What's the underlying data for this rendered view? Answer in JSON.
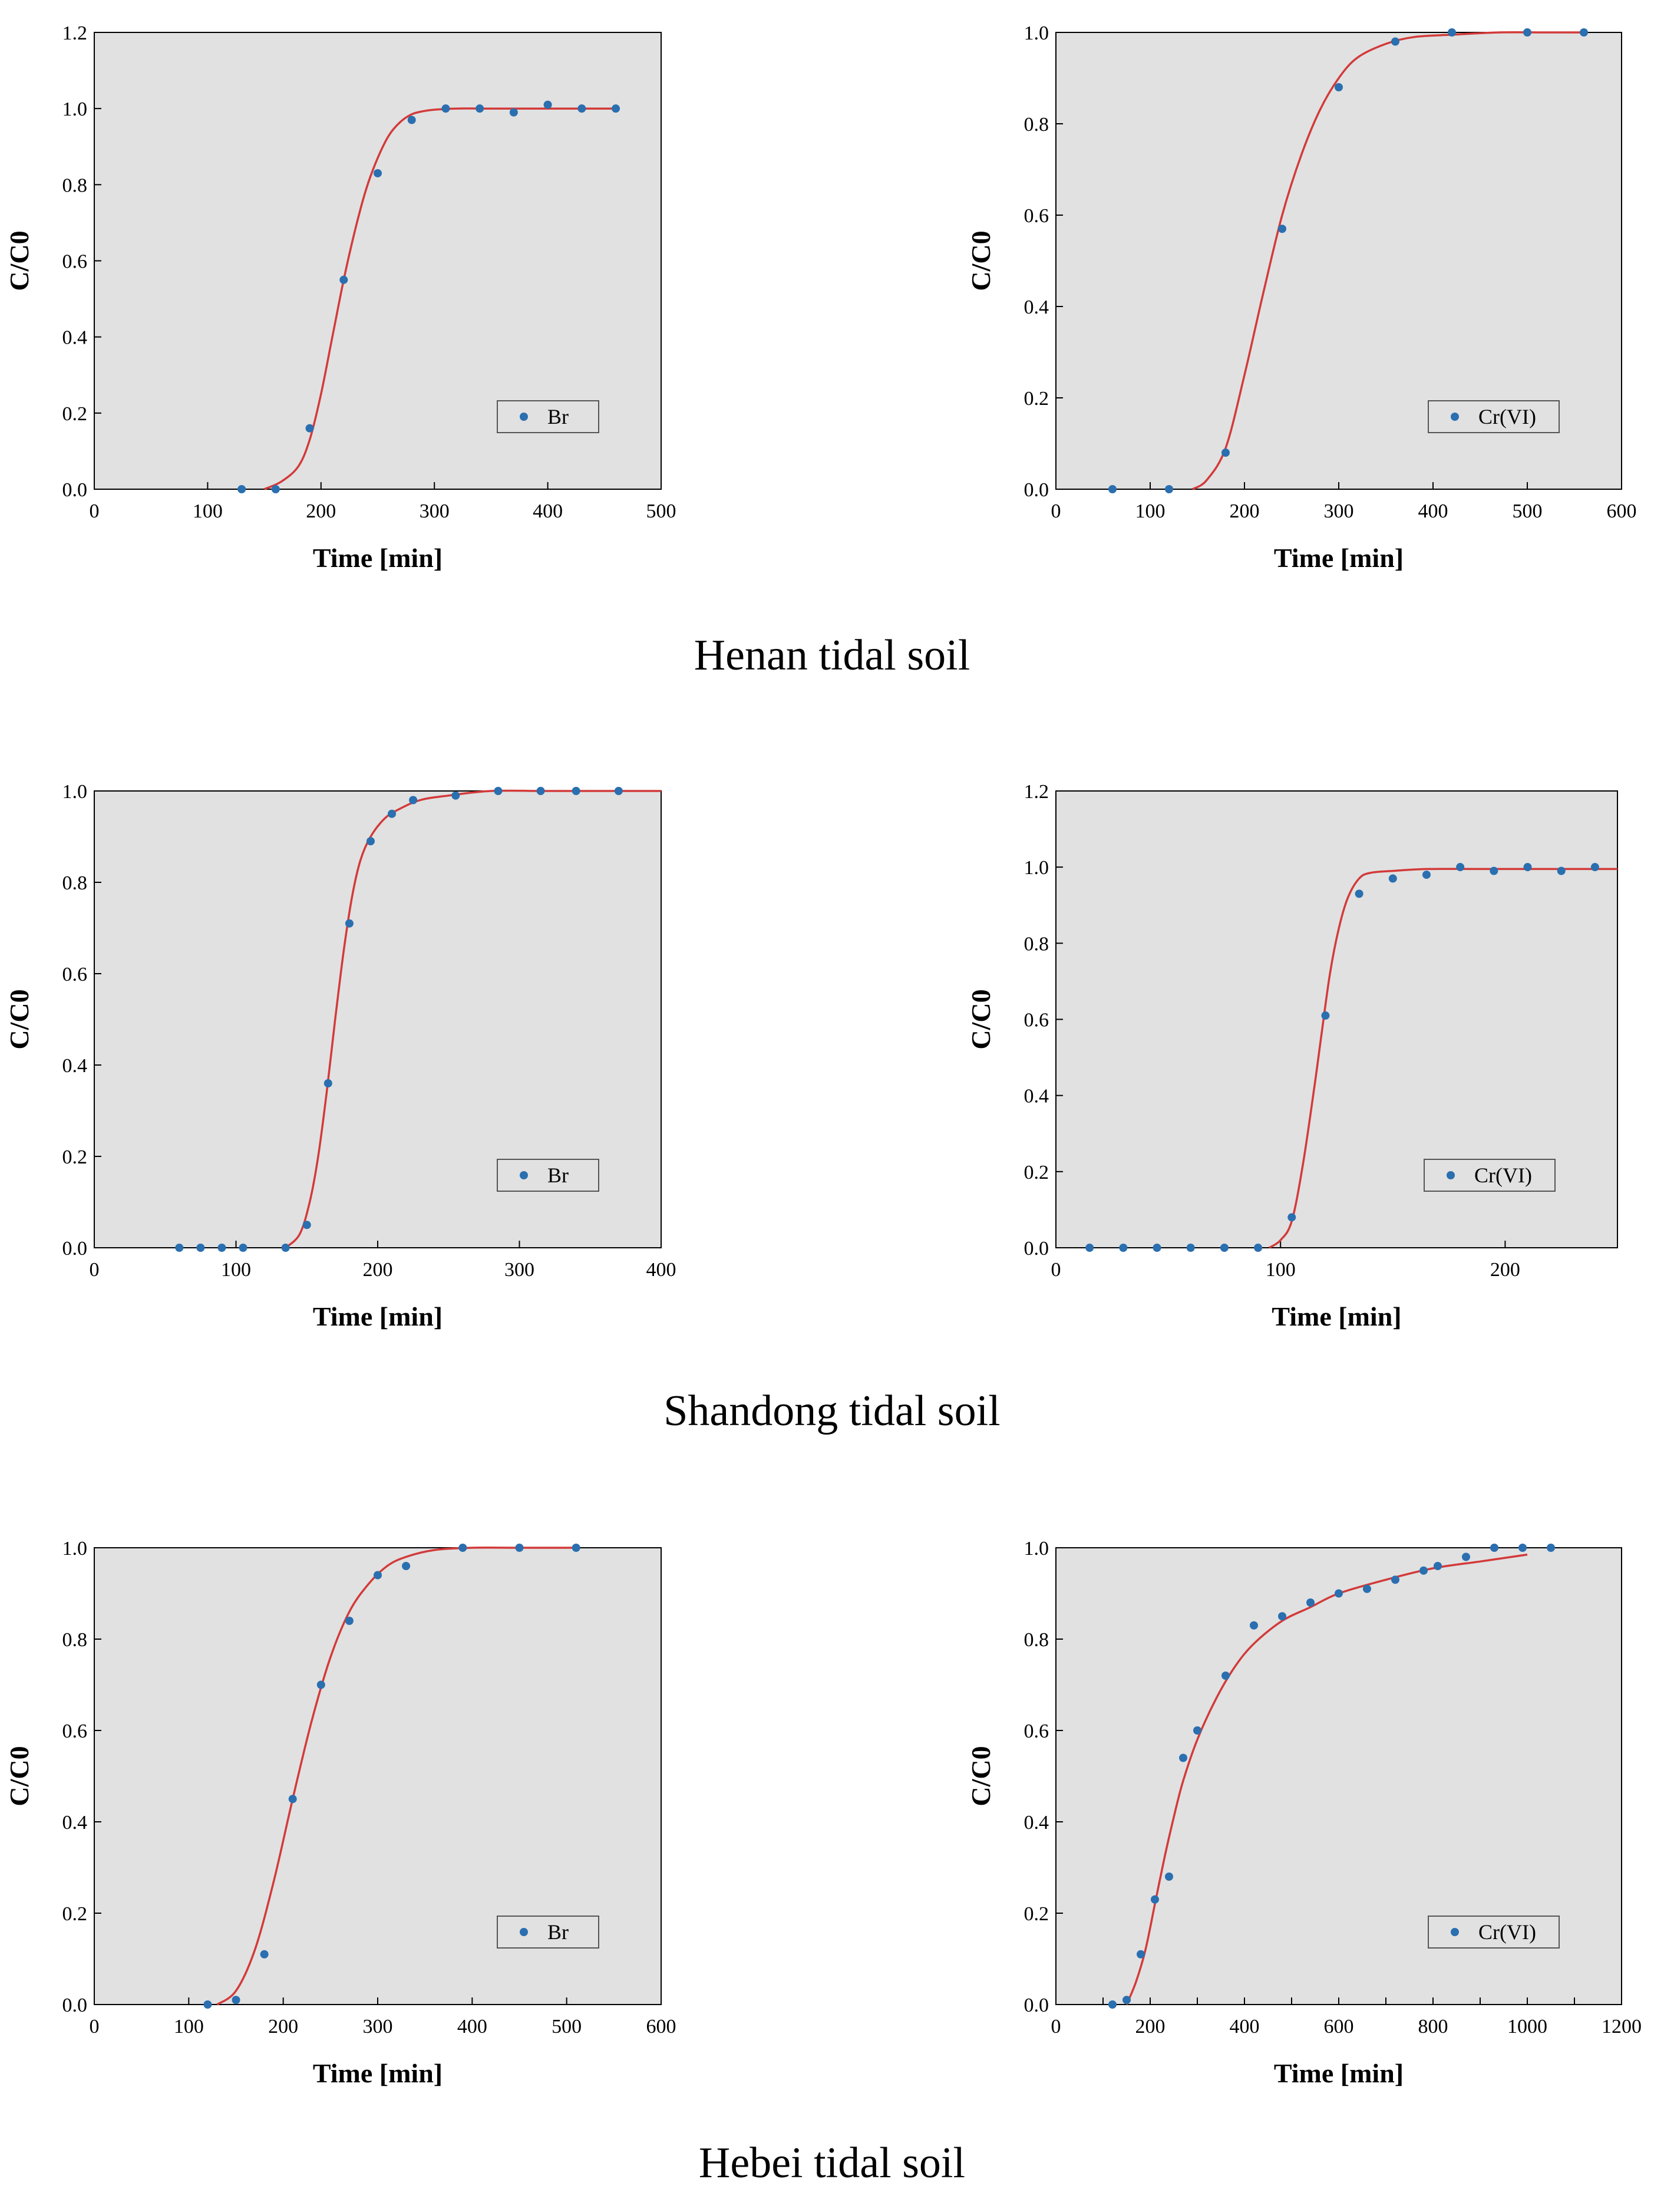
{
  "captions": [
    "Henan tidal soil",
    "Shandong tidal soil",
    "Hebei tidal soil"
  ],
  "colors": {
    "background": "#e1e1e1",
    "points": "#2a6fb0",
    "fit": "#d33a3a"
  },
  "chart_data": [
    {
      "type": "scatter",
      "title": "",
      "xlabel": "Time [min]",
      "ylabel": "C/C0",
      "xlim": [
        0,
        500
      ],
      "ylim": [
        0,
        1.2
      ],
      "xticks": [
        0,
        100,
        200,
        300,
        400,
        500
      ],
      "xtick_labels": [
        "0",
        "100",
        "200",
        "300",
        "400",
        "500"
      ],
      "yticks": [
        0,
        0.2,
        0.4,
        0.6,
        0.8,
        1.0,
        1.2
      ],
      "ytick_labels": [
        "0.0",
        "0.2",
        "0.4",
        "0.6",
        "0.8",
        "1.0",
        "1.2"
      ],
      "legend": "Br",
      "legend_position": "lower-right",
      "series": [
        {
          "name": "Br",
          "x": [
            130,
            160,
            190,
            220,
            250,
            280,
            310,
            340,
            370,
            400,
            430,
            460
          ],
          "y": [
            0.0,
            0.0,
            0.16,
            0.55,
            0.83,
            0.97,
            1.0,
            1.0,
            0.99,
            1.01,
            1.0,
            1.0
          ]
        },
        {
          "name": "fit",
          "x": [
            150,
            165,
            180,
            190,
            200,
            210,
            220,
            230,
            240,
            250,
            260,
            270,
            280,
            290,
            300,
            320,
            350,
            400,
            460
          ],
          "y": [
            0.0,
            0.02,
            0.06,
            0.13,
            0.25,
            0.4,
            0.55,
            0.68,
            0.79,
            0.87,
            0.93,
            0.965,
            0.985,
            0.993,
            0.997,
            1.0,
            1.0,
            1.0,
            1.0
          ]
        }
      ]
    },
    {
      "type": "scatter",
      "title": "",
      "xlabel": "Time [min]",
      "ylabel": "C/C0",
      "xlim": [
        0,
        600
      ],
      "ylim": [
        0,
        1.0
      ],
      "xticks": [
        0,
        100,
        200,
        300,
        400,
        500,
        600
      ],
      "xtick_labels": [
        "0",
        "100",
        "200",
        "300",
        "400",
        "500",
        "600"
      ],
      "yticks": [
        0,
        0.2,
        0.4,
        0.6,
        0.8,
        1.0
      ],
      "ytick_labels": [
        "0.0",
        "0.2",
        "0.4",
        "0.6",
        "0.8",
        "1.0"
      ],
      "legend": "Cr(VI)",
      "legend_position": "lower-right",
      "series": [
        {
          "name": "Cr(VI)",
          "x": [
            60,
            120,
            180,
            240,
            300,
            360,
            420,
            500,
            560
          ],
          "y": [
            0.0,
            0.0,
            0.08,
            0.57,
            0.88,
            0.98,
            1.0,
            1.0,
            1.0
          ]
        },
        {
          "name": "fit",
          "x": [
            145,
            160,
            180,
            200,
            220,
            240,
            260,
            280,
            300,
            320,
            350,
            380,
            420,
            470,
            520,
            560
          ],
          "y": [
            0.0,
            0.02,
            0.09,
            0.25,
            0.43,
            0.6,
            0.73,
            0.83,
            0.9,
            0.945,
            0.975,
            0.99,
            0.995,
            1.0,
            1.0,
            1.0
          ]
        }
      ]
    },
    {
      "type": "scatter",
      "title": "",
      "xlabel": "Time [min]",
      "ylabel": "C/C0",
      "xlim": [
        0,
        400
      ],
      "ylim": [
        0,
        1.0
      ],
      "xticks": [
        0,
        100,
        200,
        300,
        400
      ],
      "xtick_labels": [
        "0",
        "100",
        "200",
        "300",
        "400"
      ],
      "yticks": [
        0,
        0.2,
        0.4,
        0.6,
        0.8,
        1.0
      ],
      "ytick_labels": [
        "0.0",
        "0.2",
        "0.4",
        "0.6",
        "0.8",
        "1.0"
      ],
      "legend": "Br",
      "legend_position": "lower-right",
      "series": [
        {
          "name": "Br",
          "x": [
            60,
            75,
            90,
            105,
            135,
            150,
            165,
            180,
            195,
            210,
            225,
            255,
            285,
            315,
            340,
            370
          ],
          "y": [
            0.0,
            0.0,
            0.0,
            0.0,
            0.0,
            0.05,
            0.36,
            0.71,
            0.89,
            0.95,
            0.98,
            0.99,
            1.0,
            1.0,
            1.0,
            1.0
          ]
        },
        {
          "name": "fit",
          "x": [
            135,
            145,
            152,
            158,
            164,
            170,
            176,
            182,
            188,
            195,
            205,
            215,
            230,
            250,
            280,
            320,
            370,
            400
          ],
          "y": [
            0.0,
            0.03,
            0.1,
            0.2,
            0.34,
            0.5,
            0.65,
            0.77,
            0.85,
            0.9,
            0.94,
            0.96,
            0.98,
            0.99,
            1.0,
            1.0,
            1.0,
            1.0
          ]
        }
      ]
    },
    {
      "type": "scatter",
      "title": "",
      "xlabel": "Time [min]",
      "ylabel": "C/C0",
      "xlim": [
        0,
        250
      ],
      "ylim": [
        0,
        1.2
      ],
      "xticks": [
        0,
        100,
        200
      ],
      "xtick_labels": [
        "0",
        "100",
        "200"
      ],
      "yticks": [
        0,
        0.2,
        0.4,
        0.6,
        0.8,
        1.0,
        1.2
      ],
      "ytick_labels": [
        "0.0",
        "0.2",
        "0.4",
        "0.6",
        "0.8",
        "1.0",
        "1.2"
      ],
      "legend": "Cr(VI)",
      "legend_position": "lower-right",
      "series": [
        {
          "name": "Cr(VI)",
          "x": [
            15,
            30,
            45,
            60,
            75,
            90,
            105,
            120,
            135,
            150,
            165,
            180,
            195,
            210,
            225,
            240
          ],
          "y": [
            0.0,
            0.0,
            0.0,
            0.0,
            0.0,
            0.0,
            0.08,
            0.61,
            0.93,
            0.97,
            0.98,
            1.0,
            0.99,
            1.0,
            0.99,
            1.0
          ]
        },
        {
          "name": "fit",
          "x": [
            95,
            100,
            105,
            110,
            115,
            118,
            122,
            126,
            130,
            135,
            140,
            150,
            165,
            190,
            220,
            250
          ],
          "y": [
            0.0,
            0.02,
            0.07,
            0.22,
            0.42,
            0.55,
            0.72,
            0.84,
            0.92,
            0.97,
            0.985,
            0.99,
            0.995,
            0.995,
            0.995,
            0.995
          ]
        }
      ]
    },
    {
      "type": "scatter",
      "title": "",
      "xlabel": "Time [min]",
      "ylabel": "C/C0",
      "xlim": [
        0,
        600
      ],
      "ylim": [
        0,
        1.0
      ],
      "xticks": [
        0,
        100,
        200,
        300,
        400,
        500,
        600
      ],
      "xtick_labels": [
        "0",
        "100",
        "200",
        "300",
        "400",
        "500",
        "600"
      ],
      "yticks": [
        0,
        0.2,
        0.4,
        0.6,
        0.8,
        1.0
      ],
      "ytick_labels": [
        "0.0",
        "0.2",
        "0.4",
        "0.6",
        "0.8",
        "1.0"
      ],
      "legend": "Br",
      "legend_position": "lower-right",
      "series": [
        {
          "name": "Br",
          "x": [
            120,
            150,
            180,
            210,
            240,
            270,
            300,
            330,
            390,
            450,
            510
          ],
          "y": [
            0.0,
            0.01,
            0.11,
            0.45,
            0.7,
            0.84,
            0.94,
            0.96,
            1.0,
            1.0,
            1.0
          ]
        },
        {
          "name": "fit",
          "x": [
            130,
            150,
            170,
            190,
            210,
            230,
            250,
            270,
            290,
            310,
            330,
            360,
            400,
            450,
            510
          ],
          "y": [
            0.0,
            0.03,
            0.12,
            0.27,
            0.45,
            0.62,
            0.76,
            0.86,
            0.92,
            0.96,
            0.98,
            0.995,
            1.0,
            1.0,
            1.0
          ]
        }
      ]
    },
    {
      "type": "scatter",
      "title": "",
      "xlabel": "Time [min]",
      "ylabel": "C/C0",
      "xlim": [
        0,
        1200
      ],
      "ylim": [
        0,
        1.0
      ],
      "xticks": [
        0,
        100,
        200,
        300,
        400,
        500,
        600,
        700,
        800,
        900,
        1000,
        1100,
        1200
      ],
      "xtick_labels": [
        "0",
        "",
        "200",
        "",
        "400",
        "",
        "600",
        "",
        "800",
        "",
        "1000",
        "",
        "1200"
      ],
      "yticks": [
        0,
        0.2,
        0.4,
        0.6,
        0.8,
        1.0
      ],
      "ytick_labels": [
        "0.0",
        "0.2",
        "0.4",
        "0.6",
        "0.8",
        "1.0"
      ],
      "legend": "Cr(VI)",
      "legend_position": "lower-right",
      "series": [
        {
          "name": "Cr(VI)",
          "x": [
            120,
            150,
            180,
            210,
            240,
            270,
            300,
            360,
            420,
            480,
            540,
            600,
            660,
            720,
            780,
            810,
            870,
            930,
            990,
            1050
          ],
          "y": [
            0.0,
            0.01,
            0.11,
            0.23,
            0.28,
            0.54,
            0.6,
            0.72,
            0.83,
            0.85,
            0.88,
            0.9,
            0.91,
            0.93,
            0.95,
            0.96,
            0.98,
            1.0,
            1.0,
            1.0
          ]
        },
        {
          "name": "fit",
          "x": [
            150,
            170,
            190,
            210,
            230,
            250,
            270,
            300,
            340,
            380,
            420,
            480,
            540,
            600,
            700,
            800,
            900,
            1000
          ],
          "y": [
            0.0,
            0.05,
            0.12,
            0.22,
            0.32,
            0.41,
            0.49,
            0.58,
            0.67,
            0.74,
            0.79,
            0.84,
            0.87,
            0.9,
            0.93,
            0.955,
            0.97,
            0.985
          ]
        }
      ]
    }
  ]
}
